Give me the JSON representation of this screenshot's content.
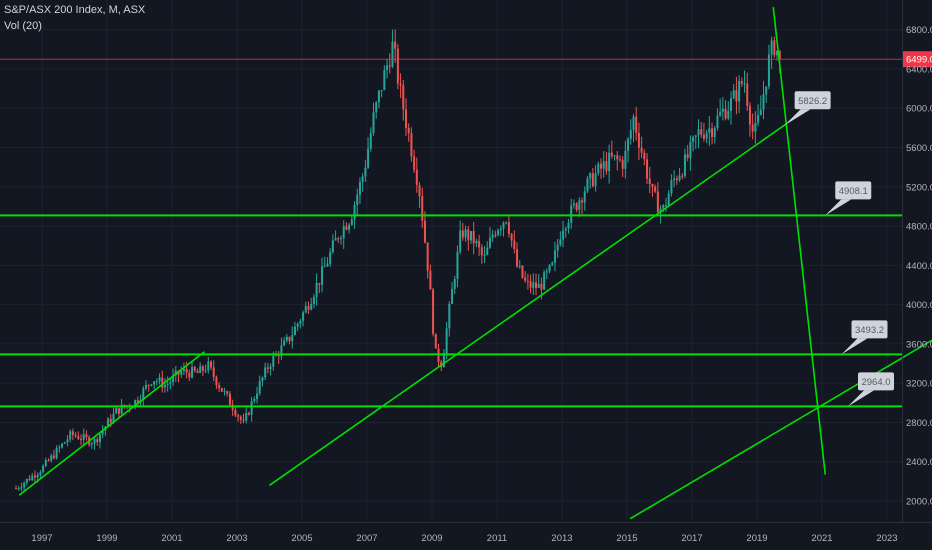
{
  "title": "S&P/ASX 200 Index, M, ASX",
  "indicator": "Vol (20)",
  "chart_data": {
    "type": "candlestick",
    "title": "S&P/ASX 200 Index, M, ASX",
    "subtitle": "Vol (20)",
    "last_price": 6499.0,
    "last_price_label": "6499.0",
    "xlim": [
      1996.2,
      2024.6
    ],
    "ylim": [
      1720,
      7060
    ],
    "x_ticks": [
      "1997",
      "1999",
      "2001",
      "2003",
      "2005",
      "2007",
      "2009",
      "2011",
      "2013",
      "2015",
      "2017",
      "2019",
      "2021",
      "2023"
    ],
    "y_ticks": [
      "2000.0",
      "2400.0",
      "2800.0",
      "3200.0",
      "3600.0",
      "4000.0",
      "4400.0",
      "4800.0",
      "5200.0",
      "5600.0",
      "6000.0",
      "6400.0",
      "6800.0"
    ],
    "colors": {
      "up": "#26a69a",
      "down": "#ef5350",
      "lines": "#00e000",
      "last_price": "#f23645",
      "background": "#131722",
      "grid": "#1e222d",
      "axis_text": "#b2b5be"
    },
    "anchors": [
      [
        1996.2,
        2130
      ],
      [
        1997.0,
        2330
      ],
      [
        1997.9,
        2680
      ],
      [
        1998.6,
        2600
      ],
      [
        1999.3,
        2920
      ],
      [
        1999.9,
        3020
      ],
      [
        2000.4,
        3250
      ],
      [
        2000.8,
        3180
      ],
      [
        2001.3,
        3320
      ],
      [
        2001.8,
        3300
      ],
      [
        2002.1,
        3380
      ],
      [
        2002.5,
        3150
      ],
      [
        2002.9,
        2950
      ],
      [
        2003.2,
        2780
      ],
      [
        2003.6,
        3120
      ],
      [
        2004.0,
        3400
      ],
      [
        2004.6,
        3650
      ],
      [
        2005.1,
        3950
      ],
      [
        2005.6,
        4300
      ],
      [
        2006.1,
        4700
      ],
      [
        2006.5,
        4900
      ],
      [
        2006.9,
        5350
      ],
      [
        2007.2,
        5900
      ],
      [
        2007.5,
        6300
      ],
      [
        2007.8,
        6650
      ],
      [
        2008.0,
        6200
      ],
      [
        2008.3,
        5700
      ],
      [
        2008.6,
        5200
      ],
      [
        2008.9,
        4300
      ],
      [
        2009.1,
        3500
      ],
      [
        2009.3,
        3400
      ],
      [
        2009.6,
        4100
      ],
      [
        2009.9,
        4750
      ],
      [
        2010.3,
        4650
      ],
      [
        2010.6,
        4450
      ],
      [
        2010.9,
        4750
      ],
      [
        2011.3,
        4900
      ],
      [
        2011.6,
        4400
      ],
      [
        2011.9,
        4200
      ],
      [
        2012.3,
        4180
      ],
      [
        2012.7,
        4380
      ],
      [
        2013.0,
        4800
      ],
      [
        2013.4,
        5000
      ],
      [
        2013.7,
        5180
      ],
      [
        2014.1,
        5350
      ],
      [
        2014.5,
        5480
      ],
      [
        2014.9,
        5450
      ],
      [
        2015.2,
        5900
      ],
      [
        2015.5,
        5500
      ],
      [
        2015.8,
        5100
      ],
      [
        2016.1,
        4950
      ],
      [
        2016.4,
        5250
      ],
      [
        2016.8,
        5450
      ],
      [
        2017.2,
        5750
      ],
      [
        2017.6,
        5800
      ],
      [
        2017.9,
        5950
      ],
      [
        2018.2,
        6050
      ],
      [
        2018.6,
        6300
      ],
      [
        2018.9,
        5700
      ],
      [
        2019.1,
        5950
      ],
      [
        2019.4,
        6550
      ],
      [
        2019.55,
        6650
      ],
      [
        2019.7,
        6499
      ]
    ],
    "trend_lines": [
      {
        "type": "horizontal",
        "y": 4908.1
      },
      {
        "type": "horizontal",
        "y": 3493.2
      },
      {
        "type": "horizontal",
        "y": 2964.0
      },
      {
        "type": "segment",
        "from": [
          1996.3,
          2060
        ],
        "to": [
          2002.0,
          3520
        ]
      },
      {
        "type": "segment",
        "from": [
          2004.0,
          2160
        ],
        "to": [
          2019.9,
          5840
        ]
      },
      {
        "type": "segment",
        "from": [
          2015.1,
          1820
        ],
        "to": [
          2024.5,
          3660
        ]
      },
      {
        "type": "segment",
        "from": [
          2019.5,
          7030
        ],
        "to": [
          2021.1,
          2270
        ]
      }
    ],
    "annotations": [
      {
        "label": "5826.2",
        "x": 2019.85,
        "y": 5826.2
      },
      {
        "label": "4908.1",
        "x": 2021.1,
        "y": 4908.1
      },
      {
        "label": "3493.2",
        "x": 2021.6,
        "y": 3493.2
      },
      {
        "label": "2964.0",
        "x": 2021.8,
        "y": 2964.0
      }
    ]
  }
}
